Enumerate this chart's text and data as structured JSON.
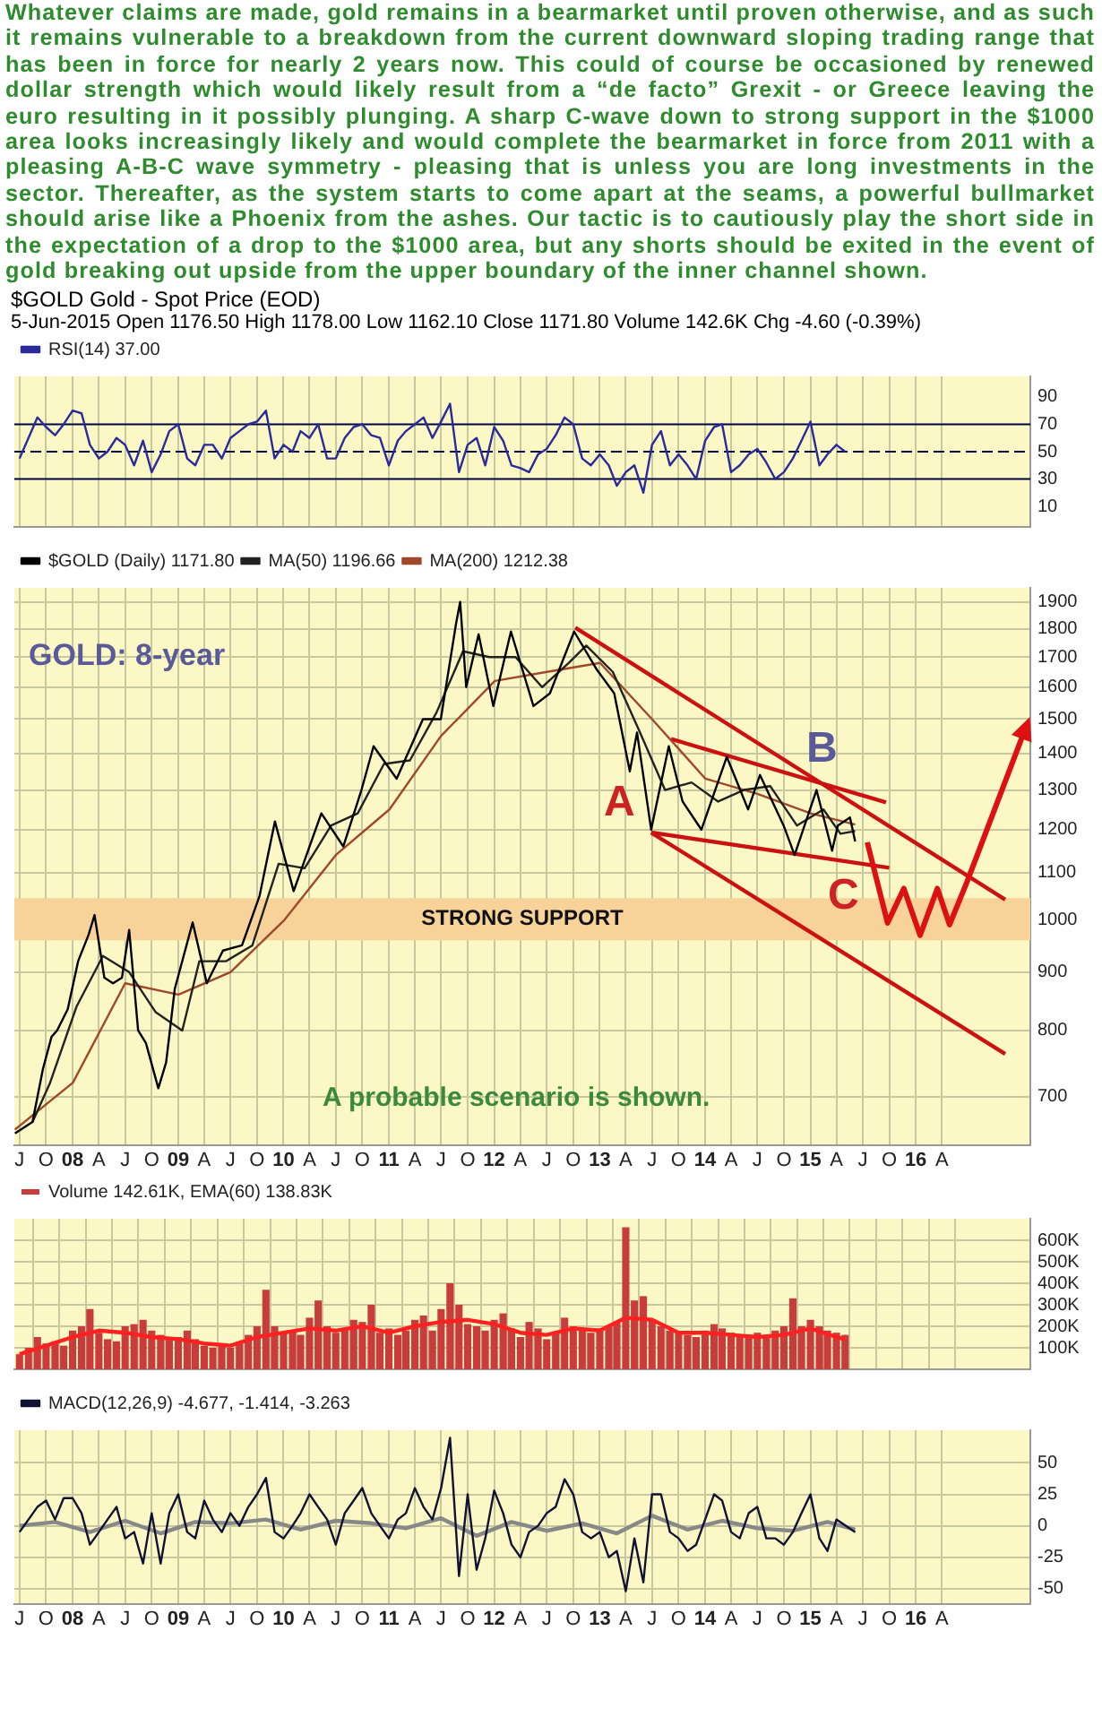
{
  "chart_data": [
    {
      "type": "line",
      "title": "$GOLD Gold - Spot Price (EOD)",
      "subtitle": "5-Jun-2015   Open 1176.50  High 1178.00  Low 1162.10  Close 1171.80  Volume 142.6K  Chg -4.60 (-0.39%)",
      "annotations": [
        "Whatever claims are made, gold remains in a bearmarket until proven otherwise, and as such it remains vulnerable to a breakdown from the current downward sloping trading range that has been in force for nearly 2 years now. This could of course be occasioned by renewed dollar strength which would likely result from a “de facto” Grexit - or Greece leaving the euro resulting in it possibly plunging. A sharp C-wave down to strong support in the $1000 area looks increasingly likely and would complete the bearmarket in force from 2011 with a pleasing A-B-C wave symmetry - pleasing that is unless you are long investments in the sector. Thereafter, as the system starts to come apart at the seams, a powerful bullmarket should arise like a Phoenix from the ashes. Our tactic is to cautiously play the short side in the expectation of a drop to the $1000 area, but any shorts should be exited in the event of gold breaking out upside from the upper boundary of the inner channel shown."
      ],
      "x": [
        "2007-07",
        "2007-08",
        "2007-09",
        "2007-10",
        "2007-11",
        "2007-12",
        "2008-01",
        "2008-02",
        "2008-03",
        "2008-04",
        "2008-05",
        "2008-06",
        "2008-07",
        "2008-08",
        "2008-09",
        "2008-10",
        "2008-11",
        "2008-12",
        "2009-01",
        "2009-02",
        "2009-03",
        "2009-04",
        "2009-05",
        "2009-06",
        "2009-07",
        "2009-08",
        "2009-09",
        "2009-10",
        "2009-11",
        "2009-12",
        "2010-01",
        "2010-02",
        "2010-03",
        "2010-04",
        "2010-05",
        "2010-06",
        "2010-07",
        "2010-08",
        "2010-09",
        "2010-10",
        "2010-11",
        "2010-12",
        "2011-01",
        "2011-02",
        "2011-03",
        "2011-04",
        "2011-05",
        "2011-06",
        "2011-07",
        "2011-08",
        "2011-09",
        "2011-10",
        "2011-11",
        "2011-12",
        "2012-01",
        "2012-02",
        "2012-03",
        "2012-04",
        "2012-05",
        "2012-06",
        "2012-07",
        "2012-08",
        "2012-09",
        "2012-10",
        "2012-11",
        "2012-12",
        "2013-01",
        "2013-02",
        "2013-03",
        "2013-04",
        "2013-05",
        "2013-06",
        "2013-07",
        "2013-08",
        "2013-09",
        "2013-10",
        "2013-11",
        "2013-12",
        "2014-01",
        "2014-02",
        "2014-03",
        "2014-04",
        "2014-05",
        "2014-06",
        "2014-07",
        "2014-08",
        "2014-09",
        "2014-10",
        "2014-11",
        "2014-12",
        "2015-01",
        "2015-02",
        "2015-03",
        "2015-04",
        "2015-05"
      ],
      "series": [
        {
          "name": "RSI(14) 37.00",
          "color": "#2a2a9a",
          "values": [
            45,
            60,
            75,
            68,
            62,
            70,
            80,
            78,
            55,
            45,
            50,
            60,
            55,
            40,
            58,
            35,
            48,
            65,
            70,
            45,
            40,
            55,
            55,
            45,
            60,
            65,
            70,
            72,
            80,
            45,
            55,
            50,
            65,
            60,
            70,
            45,
            45,
            60,
            68,
            70,
            62,
            60,
            40,
            58,
            65,
            70,
            75,
            60,
            72,
            85,
            35,
            55,
            60,
            40,
            68,
            58,
            40,
            38,
            35,
            48,
            52,
            62,
            75,
            70,
            45,
            40,
            48,
            40,
            25,
            35,
            40,
            20,
            55,
            65,
            40,
            48,
            40,
            30,
            58,
            68,
            70,
            35,
            40,
            48,
            52,
            42,
            30,
            35,
            45,
            58,
            72,
            40,
            48,
            55,
            50
          ]
        }
      ],
      "xlim": [
        "2007-06-13",
        "2017-02-01"
      ],
      "xticks": [
        {
          "value": "2007-07",
          "label": null
        },
        {
          "value": "2007-10",
          "label": null
        },
        {
          "value": "2008-01",
          "label": null
        },
        {
          "value": "2008-04",
          "label": null
        },
        {
          "value": "2008-07",
          "label": null
        },
        {
          "value": "2008-10",
          "label": null
        },
        {
          "value": "2009-01",
          "label": null
        },
        {
          "value": "2009-04",
          "label": null
        },
        {
          "value": "2009-07",
          "label": null
        },
        {
          "value": "2009-10",
          "label": null
        },
        {
          "value": "2010-01",
          "label": null
        },
        {
          "value": "2010-04",
          "label": null
        },
        {
          "value": "2010-07",
          "label": null
        },
        {
          "value": "2010-10",
          "label": null
        },
        {
          "value": "2011-01",
          "label": null
        },
        {
          "value": "2011-04",
          "label": null
        },
        {
          "value": "2011-07",
          "label": null
        },
        {
          "value": "2011-10",
          "label": null
        },
        {
          "value": "2012-01",
          "label": null
        },
        {
          "value": "2012-04",
          "label": null
        },
        {
          "value": "2012-07",
          "label": null
        },
        {
          "value": "2012-10",
          "label": null
        },
        {
          "value": "2013-01",
          "label": null
        },
        {
          "value": "2013-04",
          "label": null
        },
        {
          "value": "2013-07",
          "label": null
        },
        {
          "value": "2013-10",
          "label": null
        },
        {
          "value": "2014-01",
          "label": null
        },
        {
          "value": "2014-04",
          "label": null
        },
        {
          "value": "2014-07",
          "label": null
        },
        {
          "value": "2014-10",
          "label": null
        },
        {
          "value": "2015-01",
          "label": null
        },
        {
          "value": "2015-04",
          "label": null
        },
        {
          "value": "2015-07",
          "label": null
        },
        {
          "value": "2015-10",
          "label": null
        },
        {
          "value": "2016-01",
          "label": null
        },
        {
          "value": "2016-04",
          "label": null
        }
      ],
      "ylim": [
        -5,
        105
      ],
      "yticks": [
        10,
        30,
        50,
        70,
        90
      ],
      "ref_lines": [
        {
          "axis": "y",
          "value": 30,
          "color": "#000044"
        },
        {
          "axis": "y",
          "value": 70,
          "color": "#000044"
        },
        {
          "axis": "y",
          "value": 50,
          "color": "#000044",
          "line_style": "dashed"
        }
      ],
      "grid": "x",
      "legend": "top left",
      "marker": "none",
      "tick_labels": "y"
    },
    {
      "type": "line",
      "log": "y",
      "annotations": [
        "GOLD: 8-year",
        "A probable scenario is shown.",
        "A",
        "B",
        "C"
      ],
      "series": [
        {
          "name": "$GOLD (Daily) 1171.80",
          "color": "#000000",
          "x": [
            "2007-06-15",
            "2007-08-15",
            "2007-09-20",
            "2007-10-20",
            "2007-11-08",
            "2007-12-15",
            "2008-01-20",
            "2008-02-25",
            "2008-03-17",
            "2008-04-20",
            "2008-05-20",
            "2008-06-20",
            "2008-07-15",
            "2008-08-15",
            "2008-09-11",
            "2008-10-24",
            "2008-11-20",
            "2008-12-20",
            "2009-02-20",
            "2009-04-10",
            "2009-06-05",
            "2009-08-10",
            "2009-10-10",
            "2009-12-02",
            "2010-02-05",
            "2010-05-12",
            "2010-07-27",
            "2010-09-28",
            "2010-11-09",
            "2011-01-28",
            "2011-04-29",
            "2011-06-30",
            "2011-08-22",
            "2011-09-05",
            "2011-09-26",
            "2011-11-08",
            "2011-12-29",
            "2012-02-28",
            "2012-05-16",
            "2012-07-12",
            "2012-10-04",
            "2012-12-20",
            "2013-02-20",
            "2013-04-15",
            "2013-05-10",
            "2013-06-28",
            "2013-08-28",
            "2013-10-15",
            "2013-12-19",
            "2014-03-17",
            "2014-05-30",
            "2014-07-10",
            "2014-09-30",
            "2014-11-07",
            "2015-01-22",
            "2015-03-17",
            "2015-04-06",
            "2015-05-18",
            "2015-06-05"
          ],
          "values": [
            650,
            665,
            740,
            790,
            800,
            835,
            920,
            970,
            1010,
            890,
            880,
            890,
            980,
            800,
            780,
            712,
            750,
            870,
            995,
            880,
            940,
            950,
            1050,
            1220,
            1060,
            1240,
            1160,
            1300,
            1420,
            1330,
            1500,
            1500,
            1820,
            1900,
            1600,
            1780,
            1540,
            1790,
            1540,
            1580,
            1790,
            1660,
            1580,
            1350,
            1460,
            1200,
            1420,
            1270,
            1200,
            1390,
            1250,
            1340,
            1210,
            1140,
            1300,
            1150,
            1210,
            1230,
            1171.8
          ]
        },
        {
          "name": "MA(50) 1196.66",
          "color": "#222222",
          "x": [
            "2007-08-15",
            "2007-10-15",
            "2008-01-15",
            "2008-04-15",
            "2008-07-15",
            "2008-10-15",
            "2009-01-15",
            "2009-03-15",
            "2009-06-15",
            "2009-09-15",
            "2009-12-15",
            "2010-03-15",
            "2010-06-15",
            "2010-09-15",
            "2010-12-15",
            "2011-03-15",
            "2011-06-15",
            "2011-09-15",
            "2011-12-15",
            "2012-03-15",
            "2012-06-15",
            "2012-09-15",
            "2012-11-15",
            "2013-02-15",
            "2013-05-15",
            "2013-08-15",
            "2013-11-15",
            "2014-02-15",
            "2014-05-15",
            "2014-08-15",
            "2014-11-15",
            "2015-02-15",
            "2015-04-15",
            "2015-06-05"
          ],
          "values": [
            665,
            720,
            840,
            930,
            900,
            830,
            800,
            920,
            920,
            950,
            1120,
            1110,
            1210,
            1240,
            1370,
            1380,
            1520,
            1720,
            1700,
            1700,
            1600,
            1680,
            1740,
            1650,
            1470,
            1300,
            1320,
            1270,
            1300,
            1310,
            1210,
            1250,
            1190,
            1196.66
          ]
        },
        {
          "name": "MA(200) 1212.38",
          "color": "#a0482a",
          "x": [
            "2007-06-15",
            "2008-01-02",
            "2008-07-01",
            "2009-01-02",
            "2009-07-01",
            "2010-01-04",
            "2010-07-01",
            "2011-01-03",
            "2011-07-01",
            "2012-01-03",
            "2012-07-02",
            "2013-01-02",
            "2013-07-01",
            "2014-01-02",
            "2014-07-01",
            "2015-01-02",
            "2015-06-05"
          ],
          "values": [
            655,
            720,
            880,
            860,
            900,
            1000,
            1140,
            1250,
            1450,
            1620,
            1650,
            1680,
            1500,
            1330,
            1290,
            1240,
            1212.38
          ]
        },
        {
          "type": "line",
          "color": "#cc1111",
          "x": [
            "2012-10-08",
            "2016-11-06"
          ],
          "values": [
            1804,
            1042
          ]
        },
        {
          "type": "line",
          "color": "#cc1111",
          "x": [
            "2013-09-05",
            "2015-09-20"
          ],
          "values": [
            1441,
            1268
          ]
        },
        {
          "type": "line",
          "color": "#cc1111",
          "x": [
            "2013-06-28",
            "2015-10-01"
          ],
          "values": [
            1193,
            1111
          ]
        },
        {
          "type": "line",
          "color": "#cc1111",
          "x": [
            "2013-06-28",
            "2016-11-06"
          ],
          "values": [
            1193,
            763
          ]
        }
      ],
      "xlim": [
        "2007-06-13",
        "2017-02-01"
      ],
      "xticks": [
        {
          "value": "2007-07",
          "label": "J"
        },
        {
          "value": "2007-10",
          "label": "O"
        },
        {
          "value": "2008-01",
          "label": "08"
        },
        {
          "value": "2008-04",
          "label": "A"
        },
        {
          "value": "2008-07",
          "label": "J"
        },
        {
          "value": "2008-10",
          "label": "O"
        },
        {
          "value": "2009-01",
          "label": "09"
        },
        {
          "value": "2009-04",
          "label": "A"
        },
        {
          "value": "2009-07",
          "label": "J"
        },
        {
          "value": "2009-10",
          "label": "O"
        },
        {
          "value": "2010-01",
          "label": "10"
        },
        {
          "value": "2010-04",
          "label": "A"
        },
        {
          "value": "2010-07",
          "label": "J"
        },
        {
          "value": "2010-10",
          "label": "O"
        },
        {
          "value": "2011-01",
          "label": "11"
        },
        {
          "value": "2011-04",
          "label": "A"
        },
        {
          "value": "2011-07",
          "label": "J"
        },
        {
          "value": "2011-10",
          "label": "O"
        },
        {
          "value": "2012-01",
          "label": "12"
        },
        {
          "value": "2012-04",
          "label": "A"
        },
        {
          "value": "2012-07",
          "label": "J"
        },
        {
          "value": "2012-10",
          "label": "O"
        },
        {
          "value": "2013-01",
          "label": "13"
        },
        {
          "value": "2013-04",
          "label": "A"
        },
        {
          "value": "2013-07",
          "label": "J"
        },
        {
          "value": "2013-10",
          "label": "O"
        },
        {
          "value": "2014-01",
          "label": "14"
        },
        {
          "value": "2014-04",
          "label": "A"
        },
        {
          "value": "2014-07",
          "label": "J"
        },
        {
          "value": "2014-10",
          "label": "O"
        },
        {
          "value": "2015-01",
          "label": "15"
        },
        {
          "value": "2015-04",
          "label": "A"
        },
        {
          "value": "2015-07",
          "label": "J"
        },
        {
          "value": "2015-10",
          "label": "O"
        },
        {
          "value": "2016-01",
          "label": "16"
        },
        {
          "value": "2016-04",
          "label": "A"
        }
      ],
      "ylim": [
        635,
        1955
      ],
      "yticks": [
        700,
        800,
        900,
        1000,
        1100,
        1200,
        1300,
        1400,
        1500,
        1600,
        1700,
        1800,
        1900
      ],
      "bands": [
        {
          "axis": "y",
          "from": 960,
          "to": 1045,
          "label": "STRONG SUPPORT",
          "color": "#f7d39a"
        }
      ],
      "grid": true,
      "legend": "top left",
      "marker": "none"
    },
    {
      "type": "bar",
      "x": [
        "2007-07",
        "2007-08",
        "2007-09",
        "2007-10",
        "2007-11",
        "2007-12",
        "2008-01",
        "2008-02",
        "2008-03",
        "2008-04",
        "2008-05",
        "2008-06",
        "2008-07",
        "2008-08",
        "2008-09",
        "2008-10",
        "2008-11",
        "2008-12",
        "2009-01",
        "2009-02",
        "2009-03",
        "2009-04",
        "2009-05",
        "2009-06",
        "2009-07",
        "2009-08",
        "2009-09",
        "2009-10",
        "2009-11",
        "2009-12",
        "2010-01",
        "2010-02",
        "2010-03",
        "2010-04",
        "2010-05",
        "2010-06",
        "2010-07",
        "2010-08",
        "2010-09",
        "2010-10",
        "2010-11",
        "2010-12",
        "2011-01",
        "2011-02",
        "2011-03",
        "2011-04",
        "2011-05",
        "2011-06",
        "2011-07",
        "2011-08",
        "2011-09",
        "2011-10",
        "2011-11",
        "2011-12",
        "2012-01",
        "2012-02",
        "2012-03",
        "2012-04",
        "2012-05",
        "2012-06",
        "2012-07",
        "2012-08",
        "2012-09",
        "2012-10",
        "2012-11",
        "2012-12",
        "2013-01",
        "2013-02",
        "2013-03",
        "2013-04",
        "2013-05",
        "2013-06",
        "2013-07",
        "2013-08",
        "2013-09",
        "2013-10",
        "2013-11",
        "2013-12",
        "2014-01",
        "2014-02",
        "2014-03",
        "2014-04",
        "2014-05",
        "2014-06",
        "2014-07",
        "2014-08",
        "2014-09",
        "2014-10",
        "2014-11",
        "2014-12",
        "2015-01",
        "2015-02",
        "2015-03",
        "2015-04",
        "2015-05"
      ],
      "series": [
        {
          "name": "Volume 142.61K, EMA(60) 138.83K",
          "color": "#c83c3c",
          "values": [
            70,
            100,
            150,
            120,
            130,
            110,
            180,
            200,
            280,
            170,
            140,
            130,
            200,
            210,
            230,
            180,
            160,
            150,
            150,
            180,
            140,
            110,
            100,
            110,
            100,
            120,
            160,
            200,
            370,
            200,
            170,
            180,
            160,
            240,
            320,
            200,
            170,
            180,
            230,
            220,
            300,
            170,
            190,
            160,
            180,
            230,
            250,
            180,
            280,
            400,
            300,
            210,
            200,
            180,
            230,
            260,
            190,
            150,
            220,
            190,
            140,
            170,
            240,
            200,
            180,
            170,
            190,
            200,
            220,
            660,
            320,
            340,
            230,
            200,
            180,
            170,
            160,
            150,
            180,
            210,
            190,
            170,
            160,
            160,
            170,
            150,
            180,
            200,
            330,
            200,
            230,
            200,
            180,
            170,
            160
          ]
        },
        {
          "type": "line",
          "color": "#ff2020",
          "x": [
            "2007-07",
            "2007-10",
            "2008-01",
            "2008-04",
            "2008-07",
            "2008-10",
            "2009-01",
            "2009-04",
            "2009-07",
            "2009-10",
            "2010-01",
            "2010-04",
            "2010-07",
            "2010-10",
            "2011-01",
            "2011-04",
            "2011-07",
            "2011-10",
            "2012-01",
            "2012-04",
            "2012-07",
            "2012-10",
            "2013-01",
            "2013-04",
            "2013-07",
            "2013-10",
            "2014-01",
            "2014-04",
            "2014-07",
            "2014-10",
            "2015-01",
            "2015-04",
            "2015-05"
          ],
          "values": [
            70,
            110,
            150,
            180,
            170,
            150,
            140,
            120,
            110,
            150,
            170,
            190,
            180,
            200,
            170,
            200,
            220,
            230,
            210,
            170,
            160,
            190,
            180,
            240,
            230,
            170,
            170,
            160,
            150,
            160,
            190,
            150,
            140
          ]
        }
      ],
      "xlim": [
        "2007-06-13",
        "2017-02-01"
      ],
      "xticks": [
        {
          "value": "2007-07",
          "label": null
        },
        {
          "value": "2007-10",
          "label": null
        },
        {
          "value": "2008-01",
          "label": null
        },
        {
          "value": "2008-04",
          "label": null
        },
        {
          "value": "2008-07",
          "label": null
        },
        {
          "value": "2008-10",
          "label": null
        },
        {
          "value": "2009-01",
          "label": null
        },
        {
          "value": "2009-04",
          "label": null
        },
        {
          "value": "2009-07",
          "label": null
        },
        {
          "value": "2009-10",
          "label": null
        },
        {
          "value": "2010-01",
          "label": null
        },
        {
          "value": "2010-04",
          "label": null
        },
        {
          "value": "2010-07",
          "label": null
        },
        {
          "value": "2010-10",
          "label": null
        },
        {
          "value": "2011-01",
          "label": null
        },
        {
          "value": "2011-04",
          "label": null
        },
        {
          "value": "2011-07",
          "label": null
        },
        {
          "value": "2011-10",
          "label": null
        },
        {
          "value": "2012-01",
          "label": null
        },
        {
          "value": "2012-04",
          "label": null
        },
        {
          "value": "2012-07",
          "label": null
        },
        {
          "value": "2012-10",
          "label": null
        },
        {
          "value": "2013-01",
          "label": null
        },
        {
          "value": "2013-04",
          "label": null
        },
        {
          "value": "2013-07",
          "label": null
        },
        {
          "value": "2013-10",
          "label": null
        },
        {
          "value": "2014-01",
          "label": null
        },
        {
          "value": "2014-04",
          "label": null
        },
        {
          "value": "2014-07",
          "label": null
        },
        {
          "value": "2014-10",
          "label": null
        },
        {
          "value": "2015-01",
          "label": null
        },
        {
          "value": "2015-04",
          "label": null
        },
        {
          "value": "2015-07",
          "label": null
        },
        {
          "value": "2015-10",
          "label": null
        },
        {
          "value": "2016-01",
          "label": null
        },
        {
          "value": "2016-04",
          "label": null
        }
      ],
      "ylim": [
        0,
        700
      ],
      "yticks": [
        {
          "value": 100,
          "label": "100K"
        },
        {
          "value": 200,
          "label": "200K"
        },
        {
          "value": 300,
          "label": "300K"
        },
        {
          "value": 400,
          "label": "400K"
        },
        {
          "value": 500,
          "label": "500K"
        },
        {
          "value": 600,
          "label": "600K"
        }
      ],
      "grid": true,
      "legend": "top left",
      "marker": "none",
      "tick_labels": "y"
    },
    {
      "type": "line",
      "series": [
        {
          "name": "MACD(12,26,9) -4.677, -1.414, -3.263",
          "color": "#111133",
          "x": [
            "2007-07",
            "2007-08",
            "2007-09",
            "2007-10",
            "2007-11",
            "2007-12",
            "2008-01",
            "2008-02",
            "2008-03",
            "2008-04",
            "2008-05",
            "2008-06",
            "2008-07",
            "2008-08",
            "2008-09",
            "2008-10",
            "2008-11",
            "2008-12",
            "2009-01",
            "2009-02",
            "2009-03",
            "2009-04",
            "2009-05",
            "2009-06",
            "2009-07",
            "2009-08",
            "2009-09",
            "2009-10",
            "2009-11",
            "2009-12",
            "2010-01",
            "2010-02",
            "2010-03",
            "2010-04",
            "2010-05",
            "2010-06",
            "2010-07",
            "2010-08",
            "2010-09",
            "2010-10",
            "2010-11",
            "2010-12",
            "2011-01",
            "2011-02",
            "2011-03",
            "2011-04",
            "2011-05",
            "2011-06",
            "2011-07",
            "2011-08",
            "2011-09",
            "2011-10",
            "2011-11",
            "2011-12",
            "2012-01",
            "2012-02",
            "2012-03",
            "2012-04",
            "2012-05",
            "2012-06",
            "2012-07",
            "2012-08",
            "2012-09",
            "2012-10",
            "2012-11",
            "2012-12",
            "2013-01",
            "2013-02",
            "2013-03",
            "2013-04",
            "2013-05",
            "2013-06",
            "2013-07",
            "2013-08",
            "2013-09",
            "2013-10",
            "2013-11",
            "2013-12",
            "2014-01",
            "2014-02",
            "2014-03",
            "2014-04",
            "2014-05",
            "2014-06",
            "2014-07",
            "2014-08",
            "2014-09",
            "2014-10",
            "2014-11",
            "2014-12",
            "2015-01",
            "2015-02",
            "2015-03",
            "2015-04",
            "2015-06-05"
          ],
          "values": [
            -5,
            5,
            15,
            20,
            5,
            22,
            22,
            10,
            -15,
            -5,
            5,
            15,
            -10,
            -5,
            -30,
            10,
            -30,
            10,
            25,
            -5,
            -10,
            20,
            5,
            -5,
            10,
            0,
            15,
            25,
            38,
            -5,
            -10,
            0,
            10,
            25,
            15,
            5,
            -15,
            10,
            20,
            30,
            10,
            0,
            -10,
            5,
            10,
            30,
            15,
            5,
            30,
            70,
            -40,
            25,
            -35,
            -10,
            28,
            10,
            -15,
            -25,
            -5,
            0,
            10,
            15,
            37,
            25,
            -5,
            -10,
            -5,
            -25,
            -20,
            -52,
            -10,
            -45,
            25,
            25,
            -5,
            -10,
            -20,
            -15,
            5,
            25,
            20,
            -5,
            -10,
            10,
            15,
            -10,
            -10,
            -15,
            -5,
            10,
            25,
            -10,
            -20,
            5,
            -5
          ]
        },
        {
          "color": "#888888",
          "x": [
            "2007-07",
            "2007-11",
            "2008-03",
            "2008-07",
            "2008-11",
            "2009-03",
            "2009-07",
            "2009-11",
            "2010-03",
            "2010-07",
            "2010-11",
            "2011-03",
            "2011-07",
            "2011-11",
            "2012-03",
            "2012-07",
            "2012-11",
            "2013-03",
            "2013-07",
            "2013-11",
            "2014-03",
            "2014-07",
            "2014-11",
            "2015-03",
            "2015-06-05"
          ],
          "values": [
            0,
            3,
            -5,
            4,
            -6,
            3,
            2,
            5,
            -3,
            4,
            2,
            -2,
            6,
            -8,
            3,
            -4,
            2,
            -6,
            8,
            -3,
            4,
            -2,
            -4,
            3,
            -3
          ]
        }
      ],
      "xlim": [
        "2007-06-13",
        "2017-02-01"
      ],
      "xticks": [
        {
          "value": "2007-07",
          "label": "J"
        },
        {
          "value": "2007-10",
          "label": "O"
        },
        {
          "value": "2008-01",
          "label": "08"
        },
        {
          "value": "2008-04",
          "label": "A"
        },
        {
          "value": "2008-07",
          "label": "J"
        },
        {
          "value": "2008-10",
          "label": "O"
        },
        {
          "value": "2009-01",
          "label": "09"
        },
        {
          "value": "2009-04",
          "label": "A"
        },
        {
          "value": "2009-07",
          "label": "J"
        },
        {
          "value": "2009-10",
          "label": "O"
        },
        {
          "value": "2010-01",
          "label": "10"
        },
        {
          "value": "2010-04",
          "label": "A"
        },
        {
          "value": "2010-07",
          "label": "J"
        },
        {
          "value": "2010-10",
          "label": "O"
        },
        {
          "value": "2011-01",
          "label": "11"
        },
        {
          "value": "2011-04",
          "label": "A"
        },
        {
          "value": "2011-07",
          "label": "J"
        },
        {
          "value": "2011-10",
          "label": "O"
        },
        {
          "value": "2012-01",
          "label": "12"
        },
        {
          "value": "2012-04",
          "label": "A"
        },
        {
          "value": "2012-07",
          "label": "J"
        },
        {
          "value": "2012-10",
          "label": "O"
        },
        {
          "value": "2013-01",
          "label": "13"
        },
        {
          "value": "2013-04",
          "label": "A"
        },
        {
          "value": "2013-07",
          "label": "J"
        },
        {
          "value": "2013-10",
          "label": "O"
        },
        {
          "value": "2014-01",
          "label": "14"
        },
        {
          "value": "2014-04",
          "label": "A"
        },
        {
          "value": "2014-07",
          "label": "J"
        },
        {
          "value": "2014-10",
          "label": "O"
        },
        {
          "value": "2015-01",
          "label": "15"
        },
        {
          "value": "2015-04",
          "label": "A"
        },
        {
          "value": "2015-07",
          "label": "J"
        },
        {
          "value": "2015-10",
          "label": "O"
        },
        {
          "value": "2016-01",
          "label": "16"
        },
        {
          "value": "2016-04",
          "label": "A"
        }
      ],
      "ylim": [
        -62,
        76
      ],
      "yticks": [
        -50,
        -25,
        0,
        25,
        50
      ],
      "grid": true,
      "legend": "top left",
      "marker": "none"
    }
  ]
}
